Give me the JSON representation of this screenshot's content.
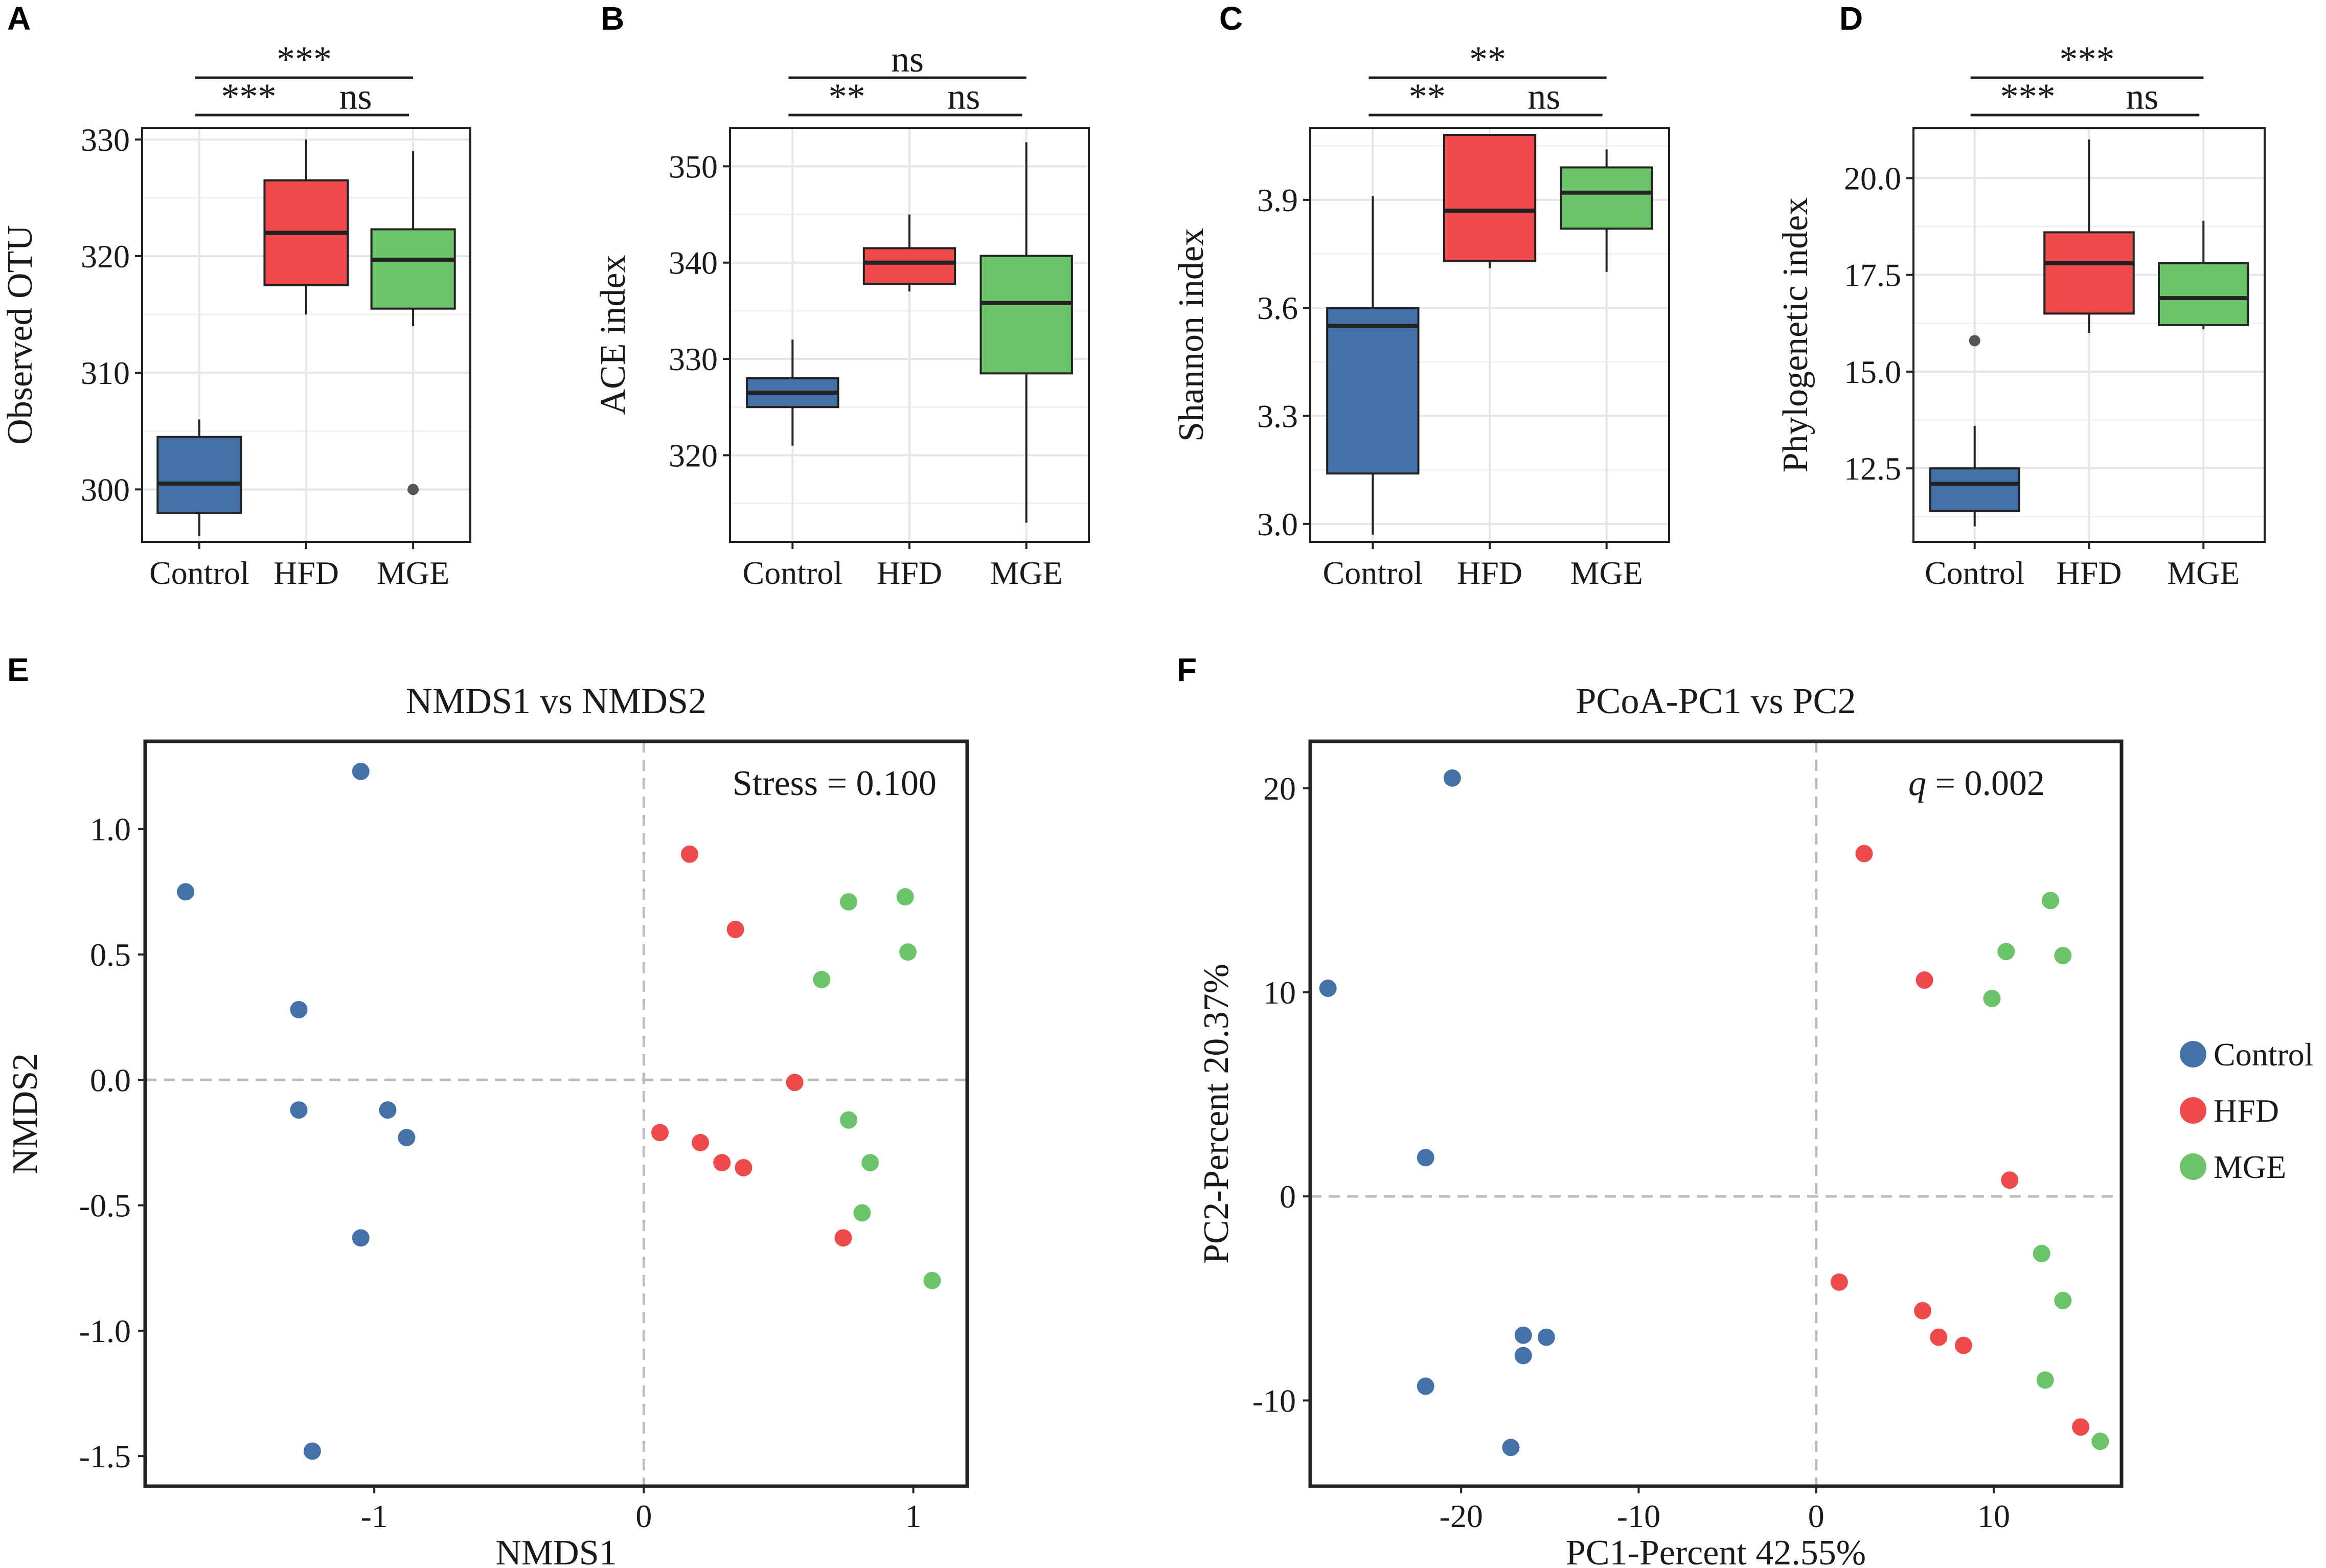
{
  "colors": {
    "Control": "#4472a8",
    "HFD": "#ef4a4b",
    "MGE": "#6cc46a",
    "grid": "#e6e6e6",
    "dashed": "#bdbdbd"
  },
  "chart_data": [
    {
      "id": "A",
      "type": "box",
      "ylabel": "Observed OTU",
      "categories": [
        "Control",
        "HFD",
        "MGE"
      ],
      "ylim": [
        295.5,
        331
      ],
      "yticks": [
        300,
        310,
        320,
        330
      ],
      "boxes": [
        {
          "group": "Control",
          "min": 296,
          "q1": 298,
          "median": 300.5,
          "q3": 304.5,
          "max": 306,
          "outliers": []
        },
        {
          "group": "HFD",
          "min": 315,
          "q1": 317.5,
          "median": 322,
          "q3": 326.5,
          "max": 330,
          "outliers": []
        },
        {
          "group": "MGE",
          "min": 314,
          "q1": 315.5,
          "median": 319.7,
          "q3": 322.3,
          "max": 329,
          "outliers": [
            300
          ]
        }
      ],
      "brackets": [
        {
          "from": 0,
          "to": 1,
          "label": "***",
          "level": 0
        },
        {
          "from": 1,
          "to": 2,
          "label": "ns",
          "level": 0
        },
        {
          "from": 0,
          "to": 2,
          "label": "***",
          "level": 1
        }
      ]
    },
    {
      "id": "B",
      "type": "box",
      "ylabel": "ACE index",
      "categories": [
        "Control",
        "HFD",
        "MGE"
      ],
      "ylim": [
        311,
        354
      ],
      "yticks": [
        320,
        330,
        340,
        350
      ],
      "boxes": [
        {
          "group": "Control",
          "min": 321,
          "q1": 325,
          "median": 326.5,
          "q3": 328,
          "max": 332,
          "outliers": []
        },
        {
          "group": "HFD",
          "min": 337,
          "q1": 337.8,
          "median": 340,
          "q3": 341.5,
          "max": 345,
          "outliers": []
        },
        {
          "group": "MGE",
          "min": 313,
          "q1": 328.5,
          "median": 335.8,
          "q3": 340.7,
          "max": 352.5,
          "outliers": []
        }
      ],
      "brackets": [
        {
          "from": 0,
          "to": 1,
          "label": "**",
          "level": 0
        },
        {
          "from": 1,
          "to": 2,
          "label": "ns",
          "level": 0
        },
        {
          "from": 0,
          "to": 2,
          "label": "ns",
          "level": 1
        }
      ]
    },
    {
      "id": "C",
      "type": "box",
      "ylabel": "Shannon index",
      "categories": [
        "Control",
        "HFD",
        "MGE"
      ],
      "ylim": [
        2.95,
        4.1
      ],
      "yticks": [
        3.0,
        3.3,
        3.6,
        3.9
      ],
      "ytick_labels": [
        "3.0",
        "3.3",
        "3.6",
        "3.9"
      ],
      "boxes": [
        {
          "group": "Control",
          "min": 2.97,
          "q1": 3.14,
          "median": 3.55,
          "q3": 3.6,
          "max": 3.91,
          "outliers": []
        },
        {
          "group": "HFD",
          "min": 3.71,
          "q1": 3.73,
          "median": 3.87,
          "q3": 4.08,
          "max": 4.08,
          "outliers": []
        },
        {
          "group": "MGE",
          "min": 3.7,
          "q1": 3.82,
          "median": 3.92,
          "q3": 3.99,
          "max": 4.04,
          "outliers": []
        }
      ],
      "brackets": [
        {
          "from": 0,
          "to": 1,
          "label": "**",
          "level": 0
        },
        {
          "from": 1,
          "to": 2,
          "label": "ns",
          "level": 0
        },
        {
          "from": 0,
          "to": 2,
          "label": "**",
          "level": 1
        }
      ]
    },
    {
      "id": "D",
      "type": "box",
      "ylabel": "Phylogenetic index",
      "categories": [
        "Control",
        "HFD",
        "MGE"
      ],
      "ylim": [
        10.6,
        21.3
      ],
      "yticks": [
        12.5,
        15.0,
        17.5,
        20.0
      ],
      "ytick_labels": [
        "12.5",
        "15.0",
        "17.5",
        "20.0"
      ],
      "boxes": [
        {
          "group": "Control",
          "min": 11.0,
          "q1": 11.4,
          "median": 12.1,
          "q3": 12.5,
          "max": 13.6,
          "outliers": [
            15.8
          ]
        },
        {
          "group": "HFD",
          "min": 16.0,
          "q1": 16.5,
          "median": 17.8,
          "q3": 18.6,
          "max": 21.0,
          "outliers": []
        },
        {
          "group": "MGE",
          "min": 16.1,
          "q1": 16.2,
          "median": 16.9,
          "q3": 17.8,
          "max": 18.9,
          "outliers": []
        }
      ],
      "brackets": [
        {
          "from": 0,
          "to": 1,
          "label": "***",
          "level": 0
        },
        {
          "from": 1,
          "to": 2,
          "label": "ns",
          "level": 0
        },
        {
          "from": 0,
          "to": 2,
          "label": "***",
          "level": 1
        }
      ]
    },
    {
      "id": "E",
      "type": "scatter",
      "title": "NMDS1 vs NMDS2",
      "xlabel": "NMDS1",
      "ylabel": "NMDS2",
      "annotation": "Stress = 0.100",
      "xlim": [
        -1.85,
        1.2
      ],
      "ylim": [
        -1.62,
        1.35
      ],
      "xticks": [
        -1,
        0,
        1
      ],
      "xtick_labels": [
        "-1",
        "0",
        "1"
      ],
      "yticks": [
        -1.5,
        -1.0,
        -0.5,
        0.0,
        0.5,
        1.0
      ],
      "ytick_labels": [
        "-1.5",
        "-1.0",
        "-0.5",
        "0.0",
        "0.5",
        "1.0"
      ],
      "series": [
        {
          "name": "Control",
          "points": [
            [
              -1.05,
              1.23
            ],
            [
              -1.7,
              0.75
            ],
            [
              -1.28,
              0.28
            ],
            [
              -1.28,
              -0.12
            ],
            [
              -0.95,
              -0.12
            ],
            [
              -0.88,
              -0.23
            ],
            [
              -1.05,
              -0.63
            ],
            [
              -1.23,
              -1.48
            ]
          ]
        },
        {
          "name": "HFD",
          "points": [
            [
              0.17,
              0.9
            ],
            [
              0.34,
              0.6
            ],
            [
              0.56,
              -0.01
            ],
            [
              0.06,
              -0.21
            ],
            [
              0.21,
              -0.25
            ],
            [
              0.29,
              -0.33
            ],
            [
              0.37,
              -0.35
            ],
            [
              0.74,
              -0.63
            ]
          ]
        },
        {
          "name": "MGE",
          "points": [
            [
              0.76,
              0.71
            ],
            [
              0.97,
              0.73
            ],
            [
              0.98,
              0.51
            ],
            [
              0.66,
              0.4
            ],
            [
              0.76,
              -0.16
            ],
            [
              0.84,
              -0.33
            ],
            [
              0.81,
              -0.53
            ],
            [
              1.07,
              -0.8
            ]
          ]
        }
      ]
    },
    {
      "id": "F",
      "type": "scatter",
      "title": "PCoA-PC1 vs PC2",
      "xlabel": "PC1-Percent 42.55%",
      "ylabel": "PC2-Percent 20.37%",
      "annotation_italic": "q",
      "annotation": " = 0.002",
      "xlim": [
        -28.5,
        17.2
      ],
      "ylim": [
        -14.2,
        22.3
      ],
      "xticks": [
        -20,
        -10,
        0,
        10
      ],
      "xtick_labels": [
        "-20",
        "-10",
        "0",
        "10"
      ],
      "yticks": [
        -10,
        0,
        10,
        20
      ],
      "ytick_labels": [
        "-10",
        "0",
        "10",
        "20"
      ],
      "series": [
        {
          "name": "Control",
          "points": [
            [
              -20.5,
              20.5
            ],
            [
              -27.5,
              10.2
            ],
            [
              -22.0,
              1.9
            ],
            [
              -16.5,
              -6.8
            ],
            [
              -15.2,
              -6.9
            ],
            [
              -16.5,
              -7.8
            ],
            [
              -22.0,
              -9.3
            ],
            [
              -17.2,
              -12.3
            ]
          ]
        },
        {
          "name": "HFD",
          "points": [
            [
              2.7,
              16.8
            ],
            [
              6.1,
              10.6
            ],
            [
              10.9,
              0.8
            ],
            [
              1.3,
              -4.2
            ],
            [
              6.0,
              -5.6
            ],
            [
              6.9,
              -6.9
            ],
            [
              8.3,
              -7.3
            ],
            [
              14.9,
              -11.3
            ]
          ]
        },
        {
          "name": "MGE",
          "points": [
            [
              13.2,
              14.5
            ],
            [
              10.7,
              12.0
            ],
            [
              13.9,
              11.8
            ],
            [
              9.9,
              9.7
            ],
            [
              12.7,
              -2.8
            ],
            [
              13.9,
              -5.1
            ],
            [
              12.9,
              -9.0
            ],
            [
              16.0,
              -12.0
            ]
          ]
        }
      ]
    }
  ],
  "legend": {
    "items": [
      {
        "label": "Control",
        "group": "Control"
      },
      {
        "label": "HFD",
        "group": "HFD"
      },
      {
        "label": "MGE",
        "group": "MGE"
      }
    ]
  }
}
